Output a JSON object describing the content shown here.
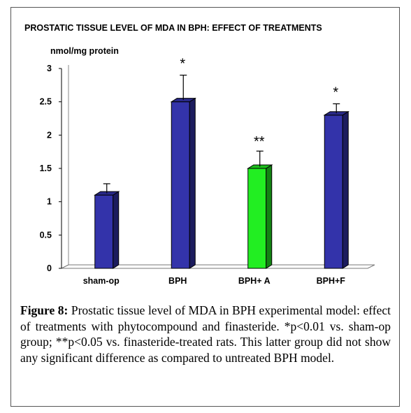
{
  "chart_data": {
    "type": "bar",
    "title": "PROSTATIC TISSUE LEVEL OF MDA IN BPH: EFFECT OF TREATMENTS",
    "ylabel": "nmol/mg protein",
    "xlabel": "",
    "ylim": [
      0,
      3
    ],
    "yticks": [
      "0",
      "0.5",
      "1",
      "1.5",
      "2",
      "2.5",
      "3"
    ],
    "categories": [
      "sham-op",
      "BPH",
      "BPH+ A",
      "BPH+F"
    ],
    "values": [
      1.1,
      2.5,
      1.5,
      2.3
    ],
    "error_upper": [
      1.27,
      2.9,
      1.76,
      2.47
    ],
    "annotations": [
      "",
      "*",
      "**",
      "*"
    ],
    "bar_colors": [
      "#3333aa",
      "#3333aa",
      "#22ee22",
      "#3333aa"
    ],
    "grid": false,
    "legend": "none"
  },
  "figure": {
    "caption_label": "Figure 8:",
    "caption_text": "Prostatic tissue level of MDA in BPH experimental model: effect of treatments with phytocompound and finasteride. *p<0.01 vs. sham-op group; **p<0.05 vs. finasteride-treated rats. This latter group did not show any significant difference as compared to untreated BPH model."
  }
}
